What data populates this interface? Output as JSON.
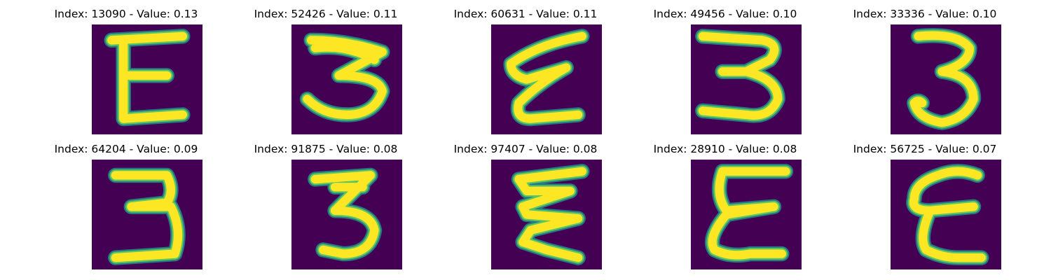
{
  "colors": {
    "background": "#440154",
    "stroke_edge": "#21918c",
    "stroke_mid": "#5ec962",
    "stroke_core": "#fde725"
  },
  "panels": [
    {
      "title": "Index: 13090 - Value: 0.13",
      "index": 13090,
      "value": 0.13,
      "glyph": "E"
    },
    {
      "title": "Index: 52426 - Value: 0.11",
      "index": 52426,
      "value": 0.11,
      "glyph": "3"
    },
    {
      "title": "Index: 60631 - Value: 0.11",
      "index": 60631,
      "value": 0.11,
      "glyph": "ε"
    },
    {
      "title": "Index: 49456 - Value: 0.10",
      "index": 49456,
      "value": 0.1,
      "glyph": "3"
    },
    {
      "title": "Index: 33336 - Value: 0.10",
      "index": 33336,
      "value": 0.1,
      "glyph": "3"
    },
    {
      "title": "Index: 64204 - Value: 0.09",
      "index": 64204,
      "value": 0.09,
      "glyph": "3"
    },
    {
      "title": "Index: 91875 - Value: 0.08",
      "index": 91875,
      "value": 0.08,
      "glyph": "3"
    },
    {
      "title": "Index: 97407 - Value: 0.08",
      "index": 97407,
      "value": 0.08,
      "glyph": "ε"
    },
    {
      "title": "Index: 28910 - Value: 0.08",
      "index": 28910,
      "value": 0.08,
      "glyph": "ε"
    },
    {
      "title": "Index: 56725 - Value: 0.07",
      "index": 56725,
      "value": 0.07,
      "glyph": "ε"
    }
  ]
}
